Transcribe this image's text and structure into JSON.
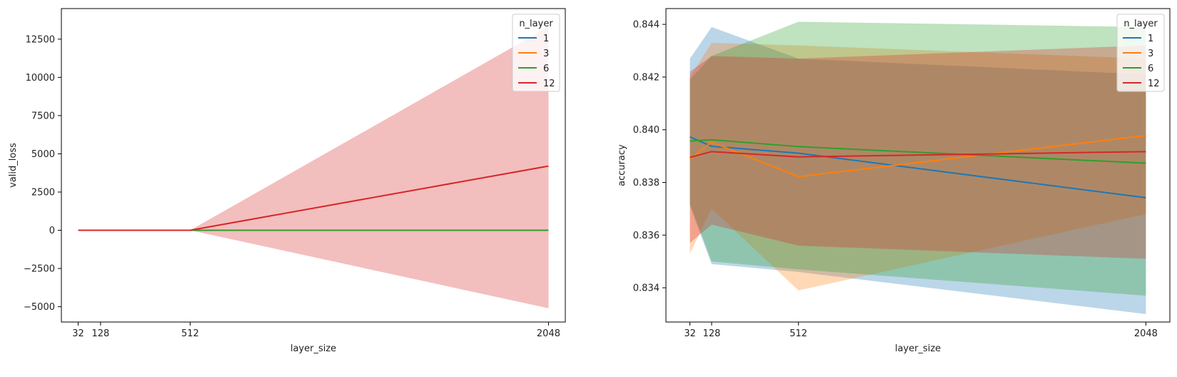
{
  "chart_data": [
    {
      "type": "line",
      "xlabel": "layer_size",
      "ylabel": "valid_loss",
      "xlim": [
        -40,
        2120
      ],
      "ylim": [
        -6000,
        14500
      ],
      "xticks": [
        32,
        128,
        512,
        2048
      ],
      "yticks": [
        -5000,
        -2500,
        0,
        2500,
        5000,
        7500,
        10000,
        12500
      ],
      "legend": {
        "title": "n_layer",
        "placement": "top-right"
      },
      "x": [
        32,
        128,
        512,
        2048
      ],
      "series": [
        {
          "name": "1",
          "color": "#1f77b4",
          "values": [
            0,
            0,
            0,
            0
          ],
          "band_low": [
            0,
            0,
            0,
            0
          ],
          "band_high": [
            0,
            0,
            0,
            0
          ]
        },
        {
          "name": "3",
          "color": "#ff7f0e",
          "values": [
            0,
            0,
            0,
            0
          ],
          "band_low": [
            0,
            0,
            0,
            0
          ],
          "band_high": [
            0,
            0,
            0,
            0
          ]
        },
        {
          "name": "6",
          "color": "#2ca02c",
          "values": [
            0,
            0,
            0,
            0
          ],
          "band_low": [
            0,
            0,
            0,
            0
          ],
          "band_high": [
            0,
            0,
            0,
            0
          ]
        },
        {
          "name": "12",
          "color": "#d62728",
          "values": [
            0,
            0,
            0,
            4200
          ],
          "band_low": [
            0,
            0,
            0,
            -5100
          ],
          "band_high": [
            0,
            0,
            0,
            13300
          ]
        }
      ]
    },
    {
      "type": "line",
      "xlabel": "layer_size",
      "ylabel": "accuracy",
      "xlim": [
        -74,
        2154
      ],
      "ylim": [
        0.8327,
        0.8446
      ],
      "xticks": [
        32,
        128,
        512,
        2048
      ],
      "yticks": [
        0.834,
        0.836,
        0.838,
        0.84,
        0.842,
        0.844
      ],
      "legend": {
        "title": "n_layer",
        "placement": "top-right"
      },
      "x": [
        32,
        128,
        512,
        2048
      ],
      "series": [
        {
          "name": "1",
          "color": "#1f77b4",
          "values": [
            0.83973,
            0.83937,
            0.83911,
            0.83742
          ],
          "band_low": [
            0.8371,
            0.8349,
            0.8346,
            0.833
          ],
          "band_high": [
            0.8427,
            0.8439,
            0.8427,
            0.8421
          ]
        },
        {
          "name": "3",
          "color": "#ff7f0e",
          "values": [
            0.83888,
            0.83953,
            0.83822,
            0.83978
          ],
          "band_low": [
            0.8353,
            0.837,
            0.8339,
            0.8368
          ],
          "band_high": [
            0.842,
            0.8433,
            0.8432,
            0.8427
          ]
        },
        {
          "name": "6",
          "color": "#2ca02c",
          "values": [
            0.83957,
            0.83962,
            0.83936,
            0.83873
          ],
          "band_low": [
            0.8372,
            0.835,
            0.8347,
            0.8337
          ],
          "band_high": [
            0.8419,
            0.8428,
            0.8441,
            0.8439
          ]
        },
        {
          "name": "12",
          "color": "#d62728",
          "values": [
            0.83895,
            0.83917,
            0.83897,
            0.83917
          ],
          "band_low": [
            0.8357,
            0.8364,
            0.8356,
            0.8351
          ],
          "band_high": [
            0.8422,
            0.8428,
            0.8427,
            0.8432
          ]
        }
      ]
    }
  ]
}
